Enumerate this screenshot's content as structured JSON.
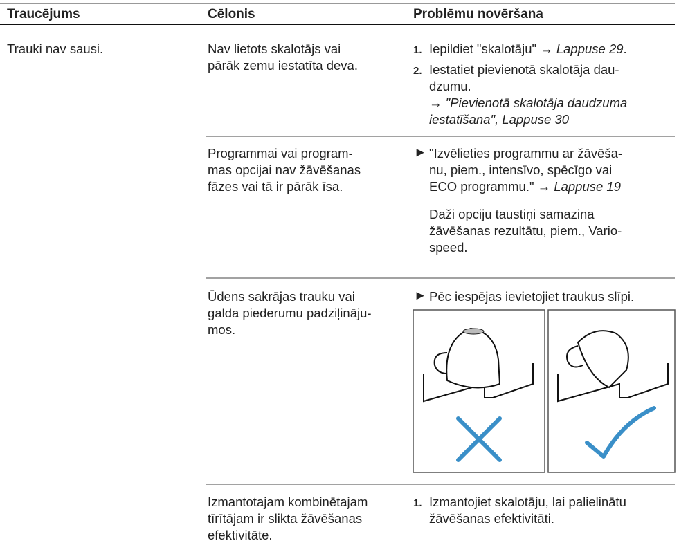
{
  "header": {
    "fault": "Traucējums",
    "cause": "Cēlonis",
    "remedy": "Problēmu novēršana"
  },
  "rows": [
    {
      "fault": "Trauki nav sausi.",
      "causes": [
        {
          "cause": [
            "Nav lietots skalotājs vai",
            "pārāk zemu iestatīta deva."
          ],
          "remedies": [
            {
              "marker": "1.",
              "lines": [
                [
                  "Iepildiet \"skalotāju\" → ",
                  {
                    "italic": "Lappuse 29"
                  },
                  "."
                ]
              ]
            },
            {
              "marker": "2.",
              "lines": [
                [
                  "Iestatiet pievienotā skalotāja dau-"
                ],
                [
                  "dzumu."
                ],
                [
                  "→ ",
                  {
                    "italic": "\"Pievienotā skalotāja daudzuma"
                  }
                ],
                [
                  {
                    "italic": "iestatīšana\", Lappuse 30"
                  }
                ]
              ]
            }
          ]
        },
        {
          "cause": [
            "Programmai vai program-",
            "mas opcijai nav žāvēšanas",
            "fāzes vai tā ir pārāk īsa."
          ],
          "remedies": [
            {
              "marker": "►",
              "lines": [
                [
                  "\"Izvēlieties programmu ar žāvēša-"
                ],
                [
                  "nu, piem., intensīvo, spēcīgo vai"
                ],
                [
                  "ECO programmu.\" → ",
                  {
                    "italic": "Lappuse 19"
                  }
                ]
              ]
            }
          ],
          "note": [
            "Daži opciju taustiņi samazina",
            "žāvēšanas rezultātu, piem., Vario-",
            "speed."
          ]
        },
        {
          "cause": [
            "Ūdens sakrājas trauku vai",
            "galda piederumu padziļināju-",
            "mos."
          ],
          "remedies": [
            {
              "marker": "►",
              "lines": [
                [
                  "Pēc iespējas ievietojiet traukus slīpi."
                ]
              ]
            }
          ]
        },
        {
          "cause": [
            "Izmantotajam kombinētajam",
            "tīrītājam ir slikta žāvēšanas",
            "efektivitāte."
          ],
          "remedies": [
            {
              "marker": "1.",
              "lines": [
                [
                  "Izmantojiet skalotāju, lai palielinātu"
                ],
                [
                  "žāvēšanas efektivitāti."
                ]
              ]
            }
          ]
        }
      ]
    }
  ]
}
